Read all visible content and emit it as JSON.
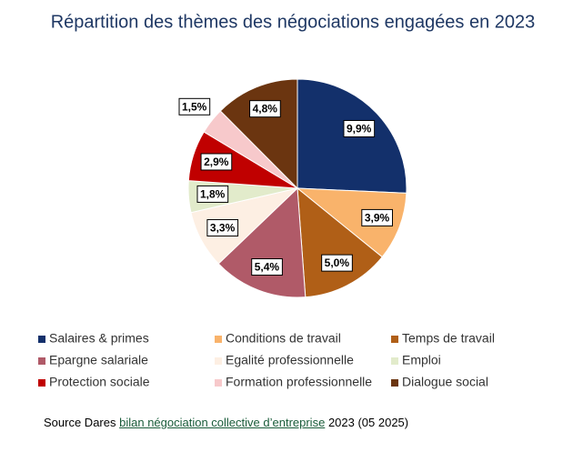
{
  "chart_data": {
    "type": "pie",
    "title": "Répartition des thèmes des négociations engagées en 2023",
    "categories": [
      "Salaires & primes",
      "Conditions de travail",
      "Temps de travail",
      "Epargne salariale",
      "Egalité professionnelle",
      "Emploi",
      "Protection sociale",
      "Formation professionnelle",
      "Dialogue social"
    ],
    "values": [
      9.9,
      3.9,
      5.0,
      5.4,
      3.3,
      1.8,
      2.9,
      1.5,
      4.8
    ],
    "value_labels": [
      "9,9%",
      "3,9%",
      "5,0%",
      "5,4%",
      "3,3%",
      "1,8%",
      "2,9%",
      "1,5%",
      "4,8%"
    ],
    "colors": [
      "#13306b",
      "#f9b36b",
      "#b05f17",
      "#b05a68",
      "#fdefe3",
      "#e2ebcb",
      "#c00000",
      "#f7c9cb",
      "#6b3510"
    ],
    "source_prefix": "Source Dares",
    "source_link": "bilan négociation collective d’entreprise",
    "source_suffix": "2023 (05 2025)"
  }
}
